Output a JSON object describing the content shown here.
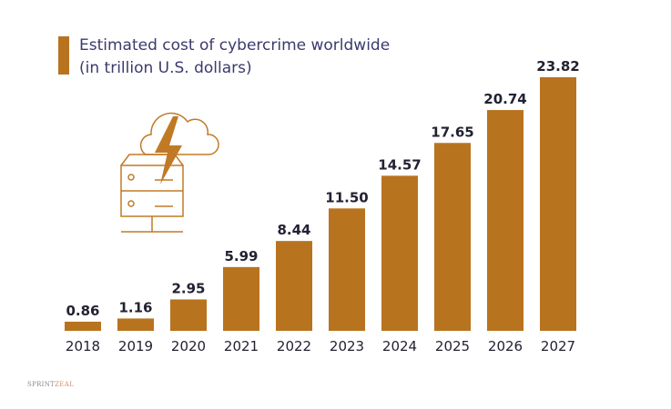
{
  "chart_data": {
    "type": "bar",
    "title_line1": "Estimated cost of cybercrime worldwide",
    "title_line2": "(in trillion U.S. dollars)",
    "categories": [
      "2018",
      "2019",
      "2020",
      "2021",
      "2022",
      "2023",
      "2024",
      "2025",
      "2026",
      "2027"
    ],
    "values": [
      0.86,
      1.16,
      2.95,
      5.99,
      8.44,
      11.5,
      14.57,
      17.65,
      20.74,
      23.82
    ],
    "value_labels": [
      "0.86",
      "1.16",
      "2.95",
      "5.99",
      "8.44",
      "11.50",
      "14.57",
      "17.65",
      "20.74",
      "23.82"
    ],
    "xlabel": "",
    "ylabel": "",
    "ylim": [
      0,
      23.82
    ],
    "grid": false,
    "legend_position": "top-left",
    "bar_color": "#b8731f",
    "title_color": "#3b3a6e",
    "label_color": "#222233"
  },
  "illustration": {
    "icon": "cloud-lightning-server-icon",
    "color": "#c07a25"
  },
  "watermark": {
    "part1": "SPRINT",
    "part2": "ZEAL"
  }
}
